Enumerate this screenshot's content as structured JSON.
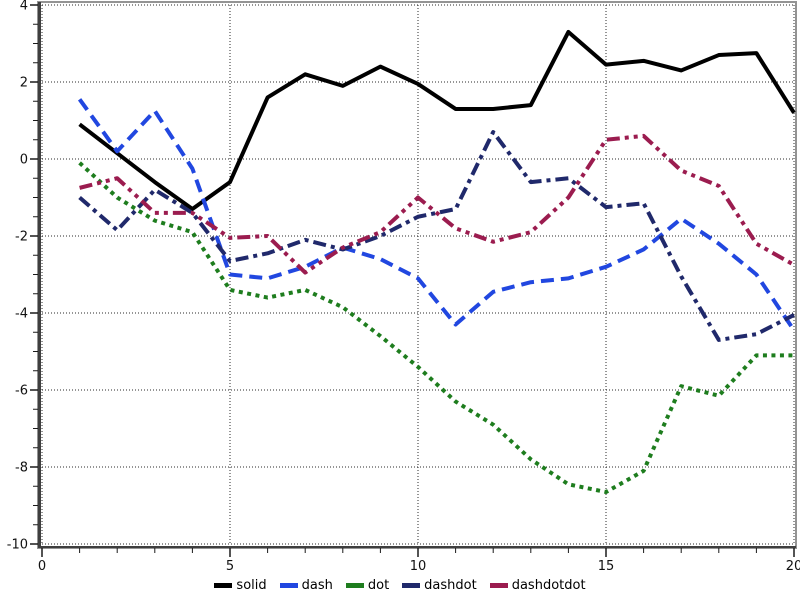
{
  "chart_data": {
    "type": "line",
    "x": [
      1,
      2,
      3,
      4,
      5,
      6,
      7,
      8,
      9,
      10,
      11,
      12,
      13,
      14,
      15,
      16,
      17,
      18,
      19,
      20
    ],
    "series": [
      {
        "name": "solid",
        "color": "#000000",
        "dash_style": "solid",
        "values": [
          0.9,
          0.15,
          -0.6,
          -1.3,
          -0.6,
          1.6,
          2.2,
          1.9,
          2.4,
          1.95,
          1.3,
          1.3,
          1.4,
          3.3,
          2.45,
          2.55,
          2.3,
          2.7,
          2.75,
          1.2
        ]
      },
      {
        "name": "dash",
        "color": "#2147e0",
        "dash_style": "dash",
        "values": [
          1.55,
          0.2,
          1.25,
          -0.25,
          -3.0,
          -3.1,
          -2.8,
          -2.3,
          -2.6,
          -3.1,
          -4.3,
          -3.45,
          -3.2,
          -3.1,
          -2.8,
          -2.35,
          -1.55,
          -2.2,
          -3.0,
          -4.45
        ]
      },
      {
        "name": "dot",
        "color": "#1e7d1e",
        "dash_style": "dot",
        "values": [
          -0.1,
          -1.0,
          -1.6,
          -1.9,
          -3.4,
          -3.6,
          -3.4,
          -3.85,
          -4.6,
          -5.4,
          -6.3,
          -6.9,
          -7.8,
          -8.45,
          -8.65,
          -8.1,
          -5.9,
          -6.15,
          -5.1,
          -5.1
        ]
      },
      {
        "name": "dashdot",
        "color": "#20296b",
        "dash_style": "dashdot",
        "values": [
          -1.0,
          -1.85,
          -0.8,
          -1.4,
          -2.65,
          -2.45,
          -2.1,
          -2.35,
          -2.0,
          -1.5,
          -1.3,
          0.7,
          -0.6,
          -0.5,
          -1.25,
          -1.15,
          -3.05,
          -4.7,
          -4.55,
          -4.05
        ]
      },
      {
        "name": "dashdotdot",
        "color": "#9b1c4f",
        "dash_style": "dashdotdot",
        "values": [
          -0.75,
          -0.5,
          -1.4,
          -1.4,
          -2.05,
          -2.0,
          -2.95,
          -2.3,
          -1.9,
          -1.0,
          -1.8,
          -2.15,
          -1.9,
          -1.0,
          0.5,
          0.6,
          -0.3,
          -0.7,
          -2.2,
          -2.75
        ]
      }
    ],
    "xlim": [
      0,
      20
    ],
    "ylim": [
      -10,
      4
    ],
    "x_major_ticks": [
      "0",
      "5",
      "10",
      "15",
      "20"
    ],
    "y_major_ticks": [
      "4",
      "2",
      "0",
      "-2",
      "-4",
      "-6",
      "-8",
      "-10"
    ],
    "x_minor_step": 1,
    "y_minor_step": 0.5,
    "grid": true,
    "legend_position": "bottom-center",
    "legend_labels": [
      "solid",
      "dash",
      "dot",
      "dashdot",
      "dashdotdot"
    ],
    "colors": {
      "grid": "#2b2b2b",
      "frame": "#949494",
      "axis": "#3f3f3f",
      "tick": "#1a1a1a",
      "label": "#111111",
      "background": "#ffffff"
    }
  }
}
